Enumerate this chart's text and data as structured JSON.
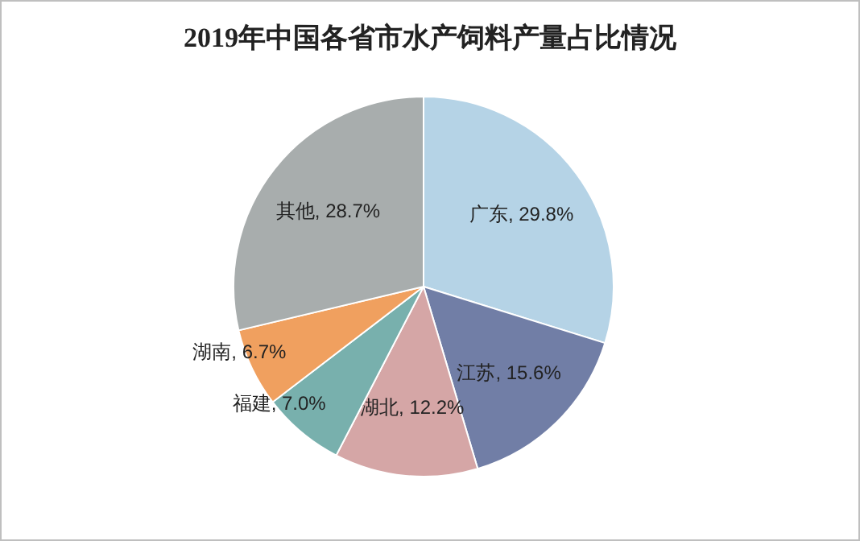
{
  "chart_data": {
    "type": "pie",
    "title": "2019年中国各省市水产饲料产量占比情况",
    "categories": [
      "广东",
      "江苏",
      "湖北",
      "福建",
      "湖南",
      "其他"
    ],
    "values": [
      29.8,
      15.6,
      12.2,
      7.0,
      6.7,
      28.7
    ],
    "colors": [
      "#b5d3e6",
      "#717ea6",
      "#d5a6a6",
      "#78b0ad",
      "#f0a05f",
      "#a8adad"
    ],
    "value_labels": [
      "29.8%",
      "15.6%",
      "12.2%",
      "7.0%",
      "6.7%",
      "28.7%"
    ]
  }
}
